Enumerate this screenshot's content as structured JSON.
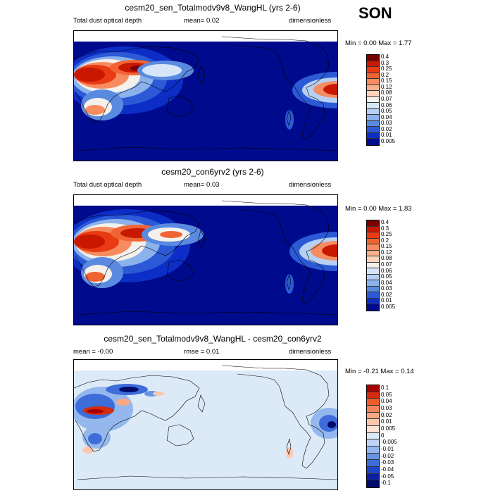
{
  "season": "SON",
  "panels": [
    {
      "title": "cesm20_sen_Totalmodv9v8_WangHL (yrs 2-6)",
      "variable": "Total dust optical depth",
      "stat": "mean=   0.02",
      "units": "dimensionless",
      "minmax": "Min =  0.00 Max =  1.77",
      "levels": [
        "0.4",
        "0.3",
        "0.25",
        "0.2",
        "0.15",
        "0.12",
        "0.08",
        "0.07",
        "0.06",
        "0.05",
        "0.04",
        "0.03",
        "0.02",
        "0.01",
        "0.005"
      ]
    },
    {
      "title": "cesm20_con6yrv2 (yrs 2-6)",
      "variable": "Total dust optical depth",
      "stat": "mean=   0.03",
      "units": "dimensionless",
      "minmax": "Min =  0.00 Max =  1.83",
      "levels": [
        "0.4",
        "0.3",
        "0.25",
        "0.2",
        "0.15",
        "0.12",
        "0.08",
        "0.07",
        "0.06",
        "0.05",
        "0.04",
        "0.03",
        "0.02",
        "0.01",
        "0.005"
      ]
    },
    {
      "title": "cesm20_sen_Totalmodv9v8_WangHL - cesm20_con6yrv2",
      "stat_left": "mean =  -0.00",
      "stat_mid": "rmse =  0.01",
      "units": "dimensionless",
      "minmax": "Min =  -0.21 Max =  0.14",
      "levels": [
        "0.1",
        "0.05",
        "0.04",
        "0.03",
        "0.02",
        "0.01",
        "0.005",
        "0",
        "-0.005",
        "-0.01",
        "-0.02",
        "-0.03",
        "-0.04",
        "-0.05",
        "-0.1"
      ]
    }
  ],
  "colors": {
    "seq": [
      "#7a0000",
      "#c81800",
      "#e83a14",
      "#f06434",
      "#f68c60",
      "#f9b08c",
      "#fbd4bc",
      "#f4f0ec",
      "#d6e6f8",
      "#b6d0f4",
      "#8cb2ec",
      "#5a8ae0",
      "#2c5ad6",
      "#0c2ec6",
      "#000a8c"
    ],
    "diff": [
      "#a80000",
      "#d42c0c",
      "#ee5a2c",
      "#f6845a",
      "#f9a886",
      "#fbc8ae",
      "#fde3d4",
      "#dceaf8",
      "#bfd4f4",
      "#94b8ee",
      "#6893e4",
      "#3e6cd8",
      "#1c44c8",
      "#0a1ea6",
      "#000a6a"
    ]
  }
}
